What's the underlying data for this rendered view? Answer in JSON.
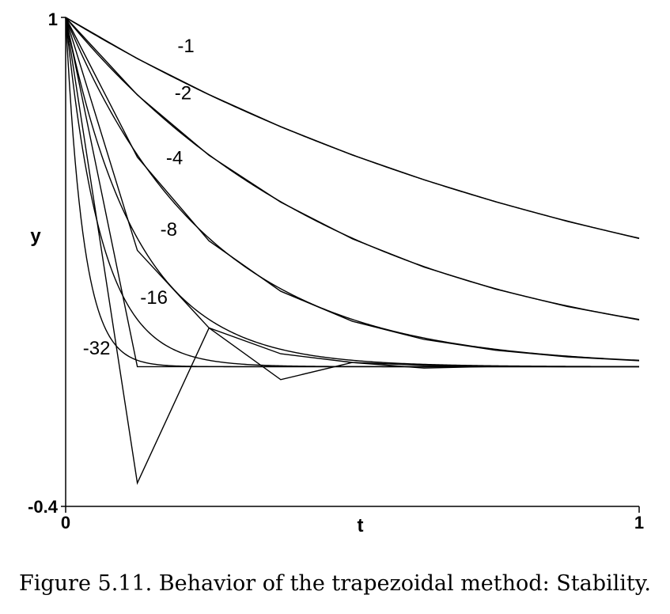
{
  "caption": "Figure 5.11. Behavior of the trapezoidal method: Stability.",
  "chart_data": {
    "type": "line",
    "xlabel": "t",
    "ylabel": "y",
    "xlim": [
      0,
      1
    ],
    "ylim": [
      -0.4,
      1
    ],
    "x_tick_labels": [
      "0",
      "1"
    ],
    "y_tick_labels": [
      "1",
      "-0.4"
    ],
    "grid": false,
    "exact_series": [
      {
        "name": "-1",
        "lambda": -1
      },
      {
        "name": "-2",
        "lambda": -2
      },
      {
        "name": "-4",
        "lambda": -4
      },
      {
        "name": "-8",
        "lambda": -8
      },
      {
        "name": "-16",
        "lambda": -16
      },
      {
        "name": "-32",
        "lambda": -32
      }
    ],
    "trapezoidal_series": [
      {
        "lambda": -1,
        "x": [
          0,
          0.125,
          0.25,
          0.375,
          0.5,
          0.625,
          0.75,
          0.875,
          1
        ],
        "y": [
          1,
          0.882,
          0.779,
          0.687,
          0.606,
          0.535,
          0.472,
          0.416,
          0.367
        ]
      },
      {
        "lambda": -2,
        "x": [
          0,
          0.125,
          0.25,
          0.375,
          0.5,
          0.625,
          0.75,
          0.875,
          1
        ],
        "y": [
          1,
          0.778,
          0.605,
          0.471,
          0.366,
          0.285,
          0.222,
          0.172,
          0.134
        ]
      },
      {
        "lambda": -4,
        "x": [
          0,
          0.125,
          0.25,
          0.375,
          0.5,
          0.625,
          0.75,
          0.875,
          1
        ],
        "y": [
          1,
          0.6,
          0.36,
          0.216,
          0.13,
          0.078,
          0.047,
          0.028,
          0.017
        ]
      },
      {
        "lambda": -8,
        "x": [
          0,
          0.125,
          0.25,
          0.375,
          0.5,
          0.625,
          0.75,
          0.875,
          1
        ],
        "y": [
          1,
          0.333,
          0.111,
          0.037,
          0.012,
          0.004,
          0.001,
          0.0,
          0.0
        ]
      },
      {
        "lambda": -16,
        "x": [
          0,
          0.125,
          0.25,
          0.375,
          0.5,
          0.625,
          0.75,
          0.875,
          1
        ],
        "y": [
          1,
          0.0,
          0.0,
          0.0,
          0.0,
          0.0,
          0.0,
          0.0,
          0.0
        ]
      },
      {
        "lambda": -32,
        "x": [
          0,
          0.125,
          0.25,
          0.375,
          0.5,
          0.625,
          0.75,
          0.875,
          1
        ],
        "y": [
          1,
          -0.333,
          0.111,
          -0.037,
          0.012,
          -0.004,
          0.001,
          0.0,
          0.0
        ]
      }
    ],
    "label_positions_data_units": [
      {
        "text": "-1",
        "x": 0.195,
        "y": 0.9
      },
      {
        "text": "-2",
        "x": 0.19,
        "y": 0.765
      },
      {
        "text": "-4",
        "x": 0.175,
        "y": 0.58
      },
      {
        "text": "-8",
        "x": 0.165,
        "y": 0.375
      },
      {
        "text": "-16",
        "x": 0.13,
        "y": 0.18
      },
      {
        "text": "-32",
        "x": 0.03,
        "y": 0.035
      }
    ]
  }
}
